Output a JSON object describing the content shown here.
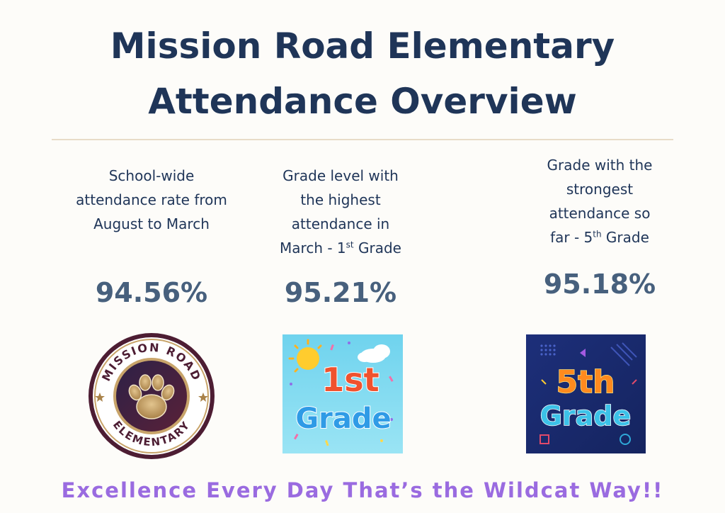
{
  "header": {
    "title_line1": "Mission Road Elementary",
    "title_line2": "Attendance Overview"
  },
  "columns": [
    {
      "description": "School-wide attendance rate from August to March",
      "value": "94.56%"
    },
    {
      "description_lines": [
        "Grade level with",
        "the highest",
        "attendance in"
      ],
      "description_tail_pre": "March - 1",
      "description_tail_sup": "st",
      "description_tail_post": " Grade",
      "value": "95.21%"
    },
    {
      "description_lines": [
        "Grade with the",
        "strongest",
        "attendance so"
      ],
      "description_tail_pre": "far - 5",
      "description_tail_sup": "th",
      "description_tail_post": " Grade",
      "value": "95.18%"
    }
  ],
  "images": {
    "logo_top_text": "MISSION ROAD",
    "logo_bottom_text": "ELEMENTARY",
    "first_grade_label_a": "1st",
    "first_grade_label_b": "Grade",
    "fifth_grade_label_a": "5th",
    "fifth_grade_label_b": "Grade"
  },
  "footer": {
    "tagline": "Excellence Every Day That’s the Wildcat Way!!"
  },
  "colors": {
    "title": "#1f3558",
    "stat": "#47607d",
    "tagline": "#9a6be0",
    "divider": "#e8dcc8"
  }
}
